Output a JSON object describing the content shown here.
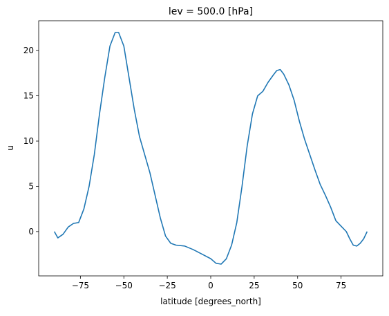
{
  "chart_data": {
    "type": "line",
    "title": "lev = 500.0 [hPa]",
    "x_label": "latitude [degrees_north]",
    "y_label": "u",
    "x": [
      -90,
      -88,
      -85,
      -82,
      -79,
      -76,
      -73,
      -70,
      -67,
      -64,
      -61,
      -58,
      -55,
      -53,
      -50,
      -47,
      -44,
      -41,
      -38,
      -35,
      -32,
      -29,
      -26,
      -23,
      -20,
      -15,
      -10,
      -5,
      0,
      3,
      6,
      9,
      12,
      15,
      18,
      21,
      24,
      27,
      30,
      33,
      36,
      38,
      40,
      42,
      45,
      48,
      51,
      54,
      57,
      60,
      63,
      66,
      69,
      72,
      75,
      78,
      80,
      82,
      84,
      86,
      88,
      90
    ],
    "series": [
      {
        "name": "u",
        "color": "#1f77b4",
        "values": [
          0,
          -0.7,
          -0.3,
          0.5,
          0.9,
          1.0,
          2.5,
          5,
          8.5,
          13,
          17,
          20.5,
          22,
          22,
          20.5,
          17,
          13.5,
          10.5,
          8.5,
          6.5,
          4,
          1.5,
          -0.5,
          -1.3,
          -1.5,
          -1.6,
          -2,
          -2.5,
          -3,
          -3.5,
          -3.6,
          -3,
          -1.5,
          1,
          5,
          9.5,
          13,
          15,
          15.5,
          16.5,
          17.3,
          17.8,
          17.9,
          17.4,
          16.2,
          14.5,
          12.2,
          10.2,
          8.5,
          6.8,
          5.2,
          4.0,
          2.7,
          1.2,
          0.6,
          0,
          -0.8,
          -1.5,
          -1.6,
          -1.3,
          -0.8,
          0
        ]
      }
    ],
    "xlim": [
      -99,
      99
    ],
    "xticks": [
      {
        "value": -75,
        "label": "−75"
      },
      {
        "value": -50,
        "label": "−50"
      },
      {
        "value": -25,
        "label": "−25"
      },
      0,
      25,
      50,
      75
    ],
    "ylim": [
      -4.9,
      23.3
    ],
    "yticks": [
      0,
      5,
      10,
      15,
      20
    ],
    "grid": false
  }
}
